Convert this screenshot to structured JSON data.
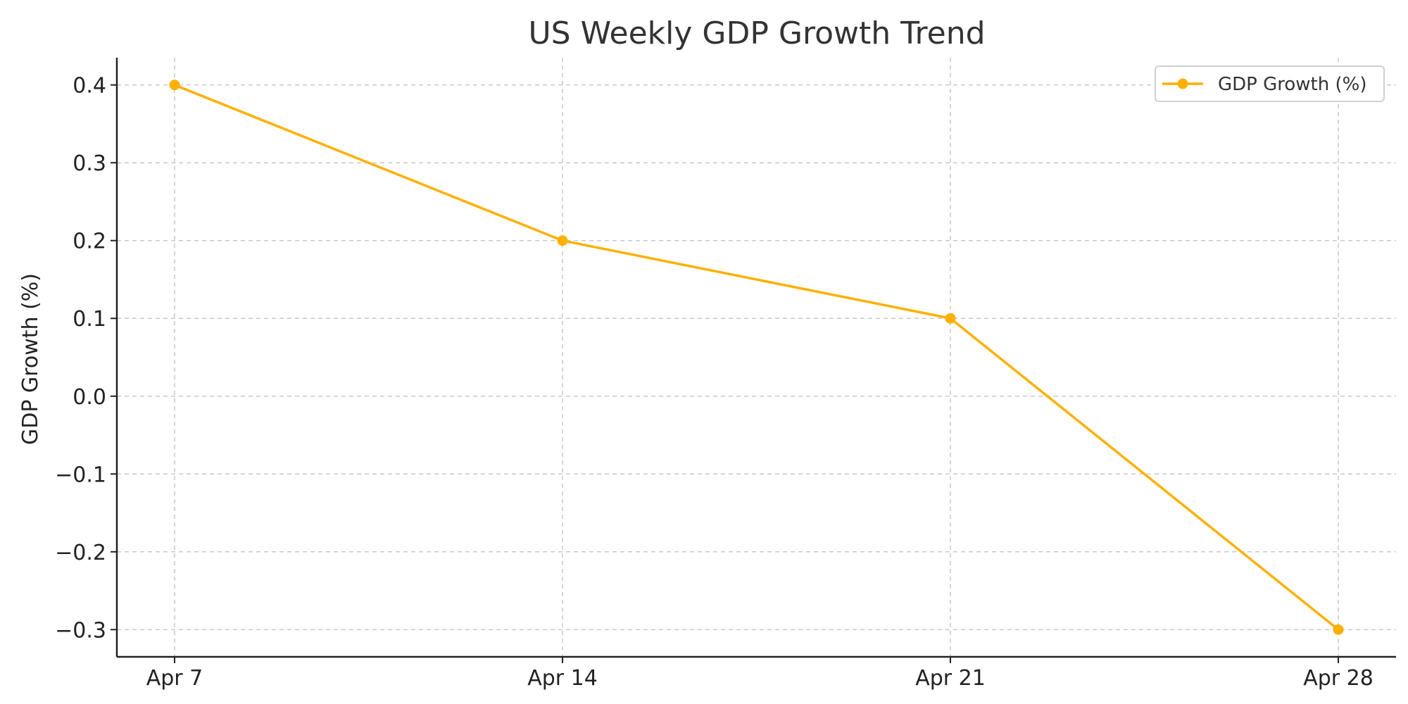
{
  "chart_data": {
    "type": "line",
    "title": "US Weekly GDP Growth Trend",
    "xlabel": "",
    "ylabel": "GDP Growth (%)",
    "categories": [
      "Apr 7",
      "Apr 14",
      "Apr 21",
      "Apr 28"
    ],
    "series": [
      {
        "name": "GDP Growth (%)",
        "values": [
          0.4,
          0.2,
          0.1,
          -0.3
        ],
        "color": "#FFB000",
        "marker": "circle"
      }
    ],
    "yticks": [
      0.4,
      0.3,
      0.2,
      0.1,
      0.0,
      -0.1,
      -0.2,
      -0.3
    ],
    "ytick_labels": [
      "0.4",
      "0.3",
      "0.2",
      "0.1",
      "0.0",
      "−0.1",
      "−0.2",
      "−0.3"
    ],
    "ylim": [
      -0.335,
      0.435
    ],
    "grid": true,
    "legend_position": "top-right"
  }
}
